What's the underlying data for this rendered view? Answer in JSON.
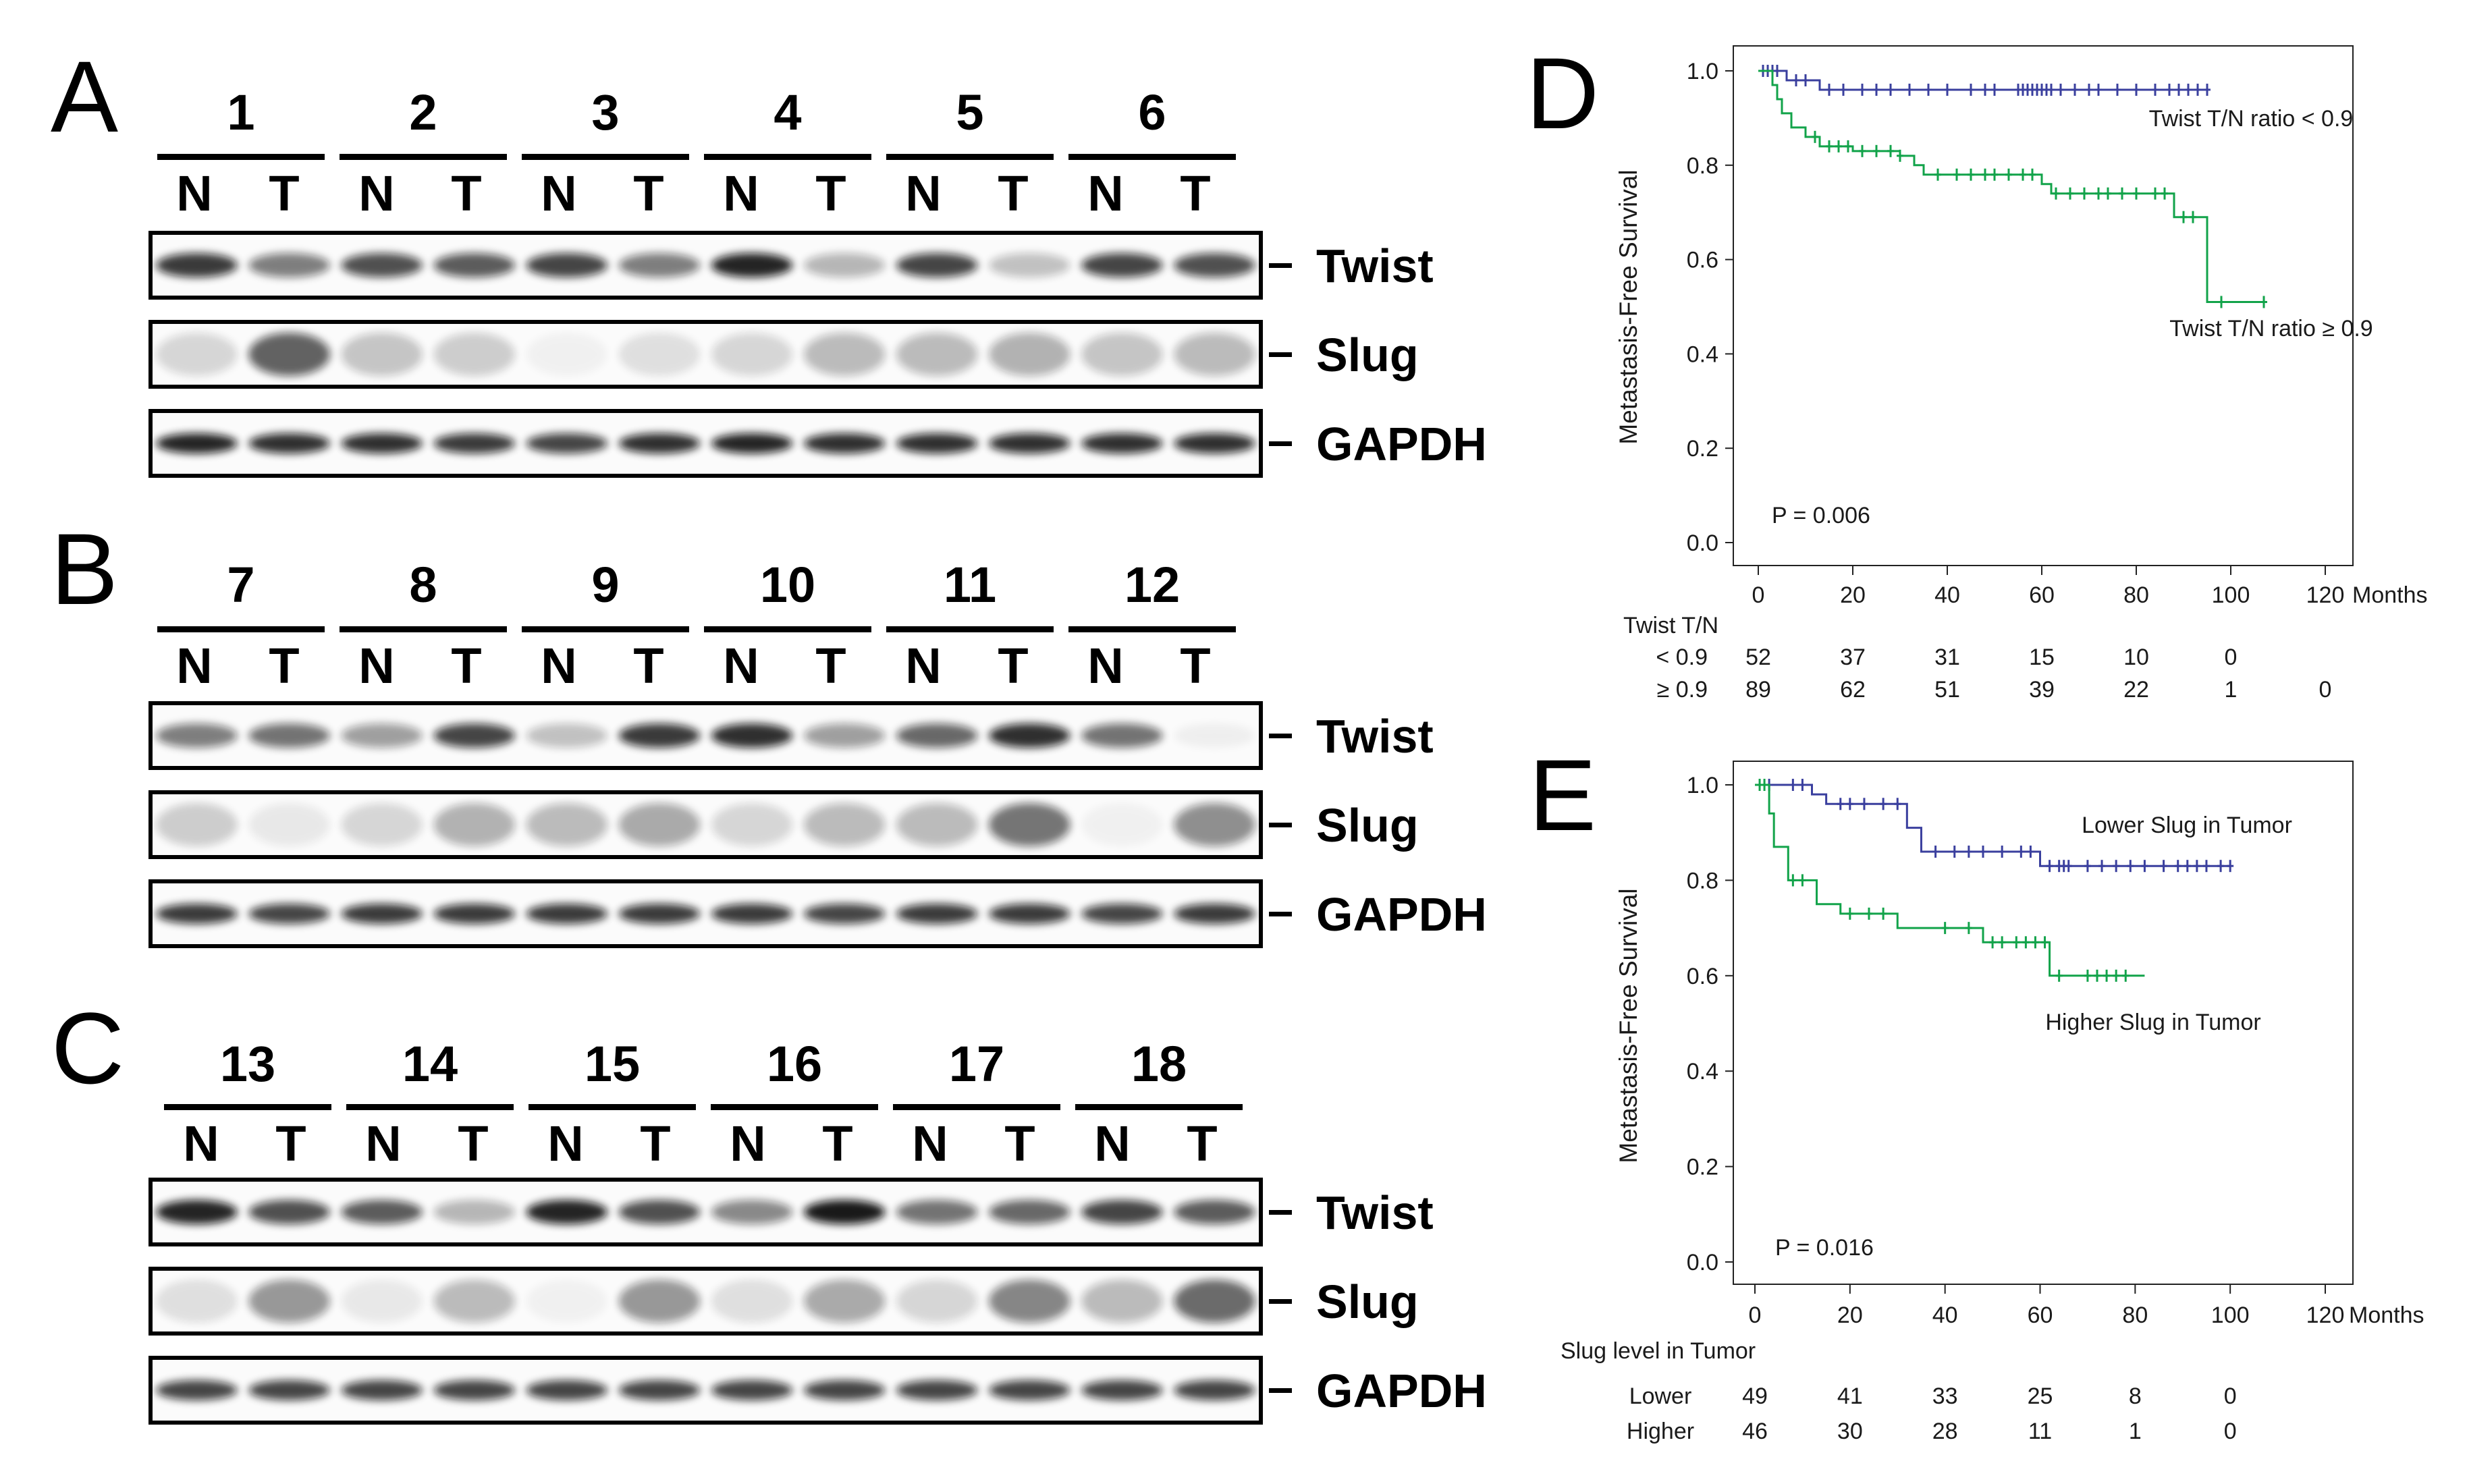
{
  "colors": {
    "blue": "#3a3f9e",
    "green": "#12a34a",
    "band": "#111111",
    "frame": "#000000"
  },
  "blots": [
    {
      "letter": "A",
      "samples": [
        "1",
        "2",
        "3",
        "4",
        "5",
        "6"
      ],
      "lanes": [
        {
          "label": "N"
        },
        {
          "label": "T"
        },
        {
          "label": "N"
        },
        {
          "label": "T"
        },
        {
          "label": "N"
        },
        {
          "label": "T"
        },
        {
          "label": "N"
        },
        {
          "label": "T"
        },
        {
          "label": "N"
        },
        {
          "label": "T"
        },
        {
          "label": "N"
        },
        {
          "label": "T"
        }
      ],
      "rows": [
        {
          "marker": "Twist",
          "intensity": [
            0.85,
            0.55,
            0.75,
            0.7,
            0.8,
            0.55,
            0.95,
            0.3,
            0.8,
            0.25,
            0.8,
            0.75
          ]
        },
        {
          "marker": "Slug",
          "intensity": [
            0.2,
            0.85,
            0.3,
            0.25,
            0.05,
            0.15,
            0.2,
            0.35,
            0.35,
            0.4,
            0.3,
            0.35
          ]
        },
        {
          "marker": "GAPDH",
          "intensity": [
            0.95,
            0.9,
            0.9,
            0.85,
            0.8,
            0.9,
            0.95,
            0.9,
            0.9,
            0.9,
            0.9,
            0.9
          ]
        }
      ]
    },
    {
      "letter": "B",
      "samples": [
        "7",
        "8",
        "9",
        "10",
        "11",
        "12"
      ],
      "lanes": [
        {
          "label": "N"
        },
        {
          "label": "T"
        },
        {
          "label": "N"
        },
        {
          "label": "T"
        },
        {
          "label": "N"
        },
        {
          "label": "T"
        },
        {
          "label": "N"
        },
        {
          "label": "T"
        },
        {
          "label": "N"
        },
        {
          "label": "T"
        },
        {
          "label": "N"
        },
        {
          "label": "T"
        }
      ],
      "rows": [
        {
          "marker": "Twist",
          "intensity": [
            0.55,
            0.6,
            0.4,
            0.8,
            0.25,
            0.85,
            0.9,
            0.4,
            0.65,
            0.9,
            0.6,
            0.05
          ]
        },
        {
          "marker": "Slug",
          "intensity": [
            0.25,
            0.1,
            0.2,
            0.4,
            0.35,
            0.45,
            0.2,
            0.35,
            0.35,
            0.75,
            0.05,
            0.6
          ]
        },
        {
          "marker": "GAPDH",
          "intensity": [
            0.85,
            0.8,
            0.85,
            0.85,
            0.85,
            0.85,
            0.85,
            0.8,
            0.85,
            0.85,
            0.8,
            0.85
          ]
        }
      ]
    },
    {
      "letter": "C",
      "samples": [
        "13",
        "14",
        "15",
        "16",
        "17",
        "18"
      ],
      "lanes": [
        {
          "label": "N"
        },
        {
          "label": "T"
        },
        {
          "label": "N"
        },
        {
          "label": "T"
        },
        {
          "label": "N"
        },
        {
          "label": "T"
        },
        {
          "label": "N"
        },
        {
          "label": "T"
        },
        {
          "label": "N"
        },
        {
          "label": "T"
        },
        {
          "label": "N"
        },
        {
          "label": "T"
        }
      ],
      "rows": [
        {
          "marker": "Twist",
          "intensity": [
            0.95,
            0.75,
            0.7,
            0.3,
            0.95,
            0.75,
            0.5,
            1.0,
            0.6,
            0.65,
            0.8,
            0.7
          ]
        },
        {
          "marker": "Slug",
          "intensity": [
            0.15,
            0.55,
            0.1,
            0.35,
            0.05,
            0.55,
            0.15,
            0.45,
            0.2,
            0.65,
            0.35,
            0.8
          ]
        },
        {
          "marker": "GAPDH",
          "intensity": [
            0.8,
            0.8,
            0.8,
            0.8,
            0.8,
            0.8,
            0.8,
            0.8,
            0.8,
            0.8,
            0.8,
            0.8
          ]
        }
      ]
    }
  ],
  "chart_data": [
    {
      "panel": "D",
      "type": "line",
      "subtype": "kaplan-meier",
      "ylabel": "Metastasis-Free Survival",
      "xlabel": "Months",
      "xlim": [
        0,
        120
      ],
      "ylim": [
        0,
        1
      ],
      "xticks": [
        "0",
        "20",
        "40",
        "60",
        "80",
        "100",
        "120"
      ],
      "yticks": [
        "0.0",
        "0.2",
        "0.4",
        "0.6",
        "0.8",
        "1.0"
      ],
      "p_value": "P = 0.006",
      "series": [
        {
          "name": "Twist T/N ratio < 0.9",
          "color": "#3a3f9e",
          "steps": [
            [
              0,
              1.0
            ],
            [
              6,
              0.98
            ],
            [
              13,
              0.96
            ],
            [
              95,
              0.96
            ]
          ],
          "censors": [
            1,
            2,
            3,
            4,
            8,
            10,
            15,
            18,
            22,
            25,
            28,
            32,
            36,
            40,
            45,
            48,
            50,
            55,
            56,
            57,
            58,
            59,
            60,
            61,
            62,
            64,
            67,
            70,
            72,
            76,
            80,
            84,
            87,
            89,
            91,
            93,
            95
          ]
        },
        {
          "name": "Twist T/N ratio ≥ 0.9",
          "color": "#12a34a",
          "steps": [
            [
              0,
              1.0
            ],
            [
              3,
              0.97
            ],
            [
              4,
              0.94
            ],
            [
              5,
              0.91
            ],
            [
              7,
              0.88
            ],
            [
              10,
              0.86
            ],
            [
              13,
              0.84
            ],
            [
              20,
              0.83
            ],
            [
              30,
              0.82
            ],
            [
              33,
              0.8
            ],
            [
              35,
              0.78
            ],
            [
              60,
              0.76
            ],
            [
              62,
              0.74
            ],
            [
              88,
              0.69
            ],
            [
              95,
              0.51
            ],
            [
              107,
              0.51
            ]
          ],
          "censors": [
            12,
            15,
            17,
            19,
            22,
            25,
            28,
            30,
            38,
            42,
            45,
            48,
            50,
            53,
            56,
            58,
            63,
            66,
            69,
            72,
            74,
            77,
            80,
            84,
            86,
            90,
            92,
            98,
            107
          ]
        }
      ],
      "risk_table": {
        "header": "Twist T/N",
        "rows": [
          {
            "label": "< 0.9",
            "values": [
              "52",
              "37",
              "31",
              "15",
              "10",
              "0"
            ]
          },
          {
            "label": "≥ 0.9",
            "values": [
              "89",
              "62",
              "51",
              "39",
              "22",
              "1",
              "0"
            ]
          }
        ]
      }
    },
    {
      "panel": "E",
      "type": "line",
      "subtype": "kaplan-meier",
      "ylabel": "Metastasis-Free Survival",
      "xlabel": "Months",
      "xlim": [
        0,
        120
      ],
      "ylim": [
        0,
        1
      ],
      "xticks": [
        "0",
        "20",
        "40",
        "60",
        "80",
        "100",
        "120"
      ],
      "yticks": [
        "0.0",
        "0.2",
        "0.4",
        "0.6",
        "0.8",
        "1.0"
      ],
      "p_value": "P = 0.016",
      "series": [
        {
          "name": "Lower Slug in Tumor",
          "color": "#3a3f9e",
          "steps": [
            [
              0,
              1.0
            ],
            [
              12,
              0.98
            ],
            [
              15,
              0.96
            ],
            [
              32,
              0.91
            ],
            [
              35,
              0.86
            ],
            [
              60,
              0.83
            ],
            [
              100,
              0.83
            ]
          ],
          "censors": [
            3,
            8,
            10,
            18,
            20,
            23,
            27,
            30,
            38,
            42,
            45,
            48,
            52,
            56,
            58,
            62,
            64,
            65,
            66,
            70,
            73,
            76,
            79,
            82,
            86,
            89,
            91,
            93,
            95,
            98,
            100
          ]
        },
        {
          "name": "Higher Slug in Tumor",
          "color": "#12a34a",
          "steps": [
            [
              0,
              1.0
            ],
            [
              3,
              0.94
            ],
            [
              4,
              0.87
            ],
            [
              7,
              0.8
            ],
            [
              13,
              0.75
            ],
            [
              18,
              0.73
            ],
            [
              30,
              0.7
            ],
            [
              48,
              0.67
            ],
            [
              62,
              0.6
            ],
            [
              82,
              0.6
            ]
          ],
          "censors": [
            1,
            2,
            8,
            10,
            20,
            24,
            27,
            40,
            45,
            50,
            52,
            55,
            57,
            59,
            61,
            64,
            70,
            72,
            74,
            76,
            78
          ]
        }
      ],
      "risk_table": {
        "header": "Slug level in Tumor",
        "rows": [
          {
            "label": "Lower",
            "values": [
              "49",
              "41",
              "33",
              "25",
              "8",
              "0"
            ]
          },
          {
            "label": "Higher",
            "values": [
              "46",
              "30",
              "28",
              "11",
              "1",
              "0"
            ]
          }
        ]
      }
    }
  ]
}
